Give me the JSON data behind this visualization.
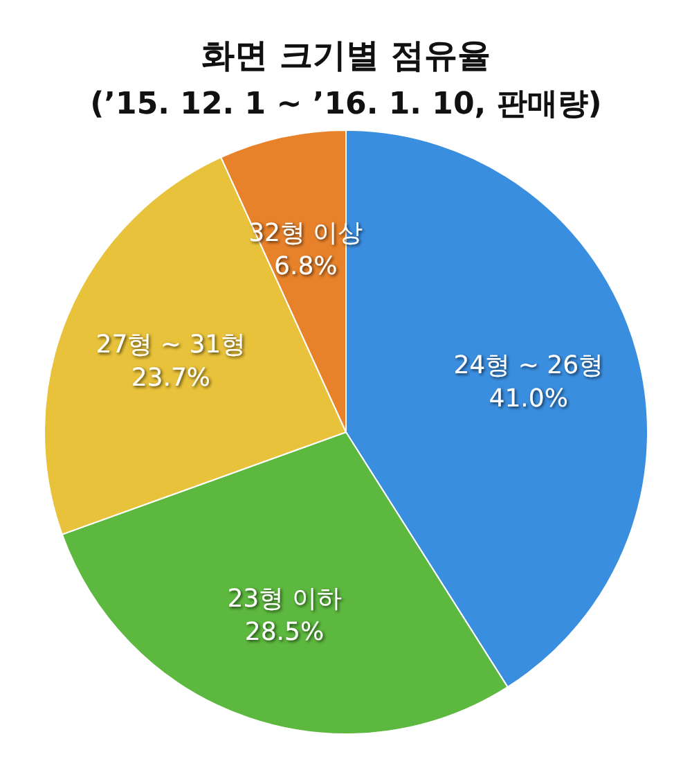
{
  "chart_data": {
    "type": "pie",
    "title": "화면 크기별 점유율",
    "subtitle": "(’15. 12. 1 ~ ’16. 1. 10, 판매량)",
    "categories": [
      "24형 ~ 26형",
      "23형 이하",
      "27형 ~ 31형",
      "32형 이상"
    ],
    "values": [
      41.0,
      28.5,
      23.7,
      6.8
    ],
    "value_labels": [
      "41.0%",
      "28.5%",
      "23.7%",
      "6.8%"
    ],
    "colors": [
      "#3a8ee0",
      "#5cb83e",
      "#e8c23a",
      "#e8822a"
    ]
  }
}
